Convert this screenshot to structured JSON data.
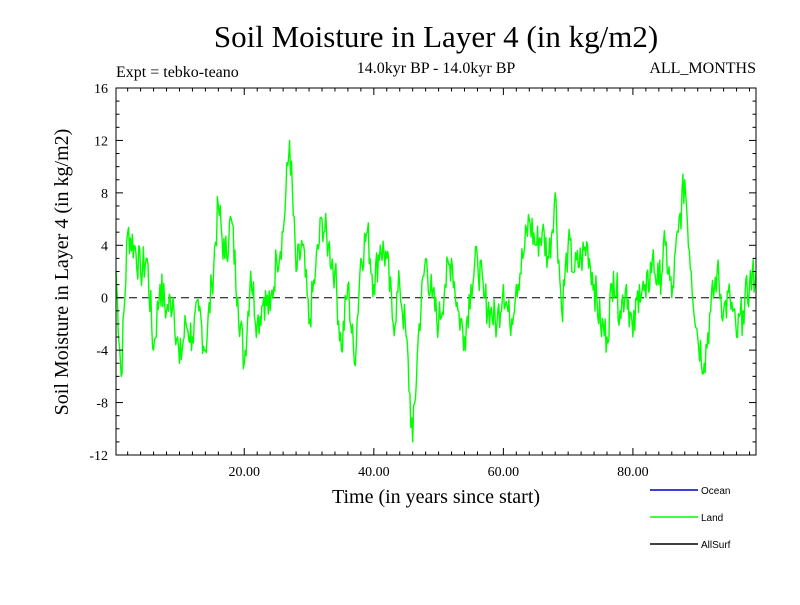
{
  "chart_data": {
    "type": "line",
    "title": "Soil Moisture in Layer 4 (in kg/m2)",
    "subtitle_left": "Expt = tebko-teano",
    "subtitle_center": "14.0kyr BP - 14.0kyr BP",
    "subtitle_right": "ALL_MONTHS",
    "xlabel": "Time (in years since start)",
    "ylabel": "Soil Moisture in Layer 4 (in kg/m2)",
    "xlim": [
      0.2,
      99.0
    ],
    "ylim": [
      -12,
      16
    ],
    "x_ticks": [
      20,
      40,
      60,
      80
    ],
    "x_tick_labels": [
      "20.00",
      "40.00",
      "60.00",
      "80.00"
    ],
    "y_ticks": [
      -12,
      -8,
      -4,
      0,
      4,
      8,
      12,
      16
    ],
    "y_tick_labels": [
      "-12",
      "-8",
      "-4",
      "0",
      "4",
      "8",
      "12",
      "16"
    ],
    "zero_line": true,
    "legend": [
      {
        "name": "Ocean",
        "color": "#0000cc"
      },
      {
        "name": "Land",
        "color": "#00ff00"
      },
      {
        "name": "AllSurf",
        "color": "#000000"
      }
    ],
    "series": [
      {
        "name": "Land",
        "color": "#00ff00",
        "x": [
          0.2,
          1,
          2,
          3,
          4,
          5,
          6,
          7,
          8,
          9,
          10,
          11,
          12,
          13,
          14,
          15,
          16,
          17,
          18,
          19,
          20,
          21,
          22,
          23,
          24,
          25,
          26,
          27,
          28,
          29,
          30,
          31,
          32,
          33,
          34,
          35,
          36,
          37,
          38,
          39,
          40,
          41,
          42,
          43,
          44,
          45,
          46,
          47,
          48,
          49,
          50,
          51,
          52,
          53,
          54,
          55,
          56,
          57,
          58,
          59,
          60,
          61,
          62,
          63,
          64,
          65,
          66,
          67,
          68,
          69,
          70,
          71,
          72,
          73,
          74,
          75,
          76,
          77,
          78,
          79,
          80,
          81,
          82,
          83,
          84,
          85,
          86,
          87,
          88,
          89,
          90,
          91,
          92,
          93,
          94,
          95,
          96,
          97,
          98,
          99
        ],
        "values": [
          2,
          -6,
          5,
          4,
          2,
          3,
          -4,
          1,
          -1,
          0,
          -5,
          -2,
          -3,
          -1,
          -4,
          1,
          7,
          3,
          6,
          0,
          -5,
          2,
          -2,
          0,
          -1,
          3,
          5,
          12,
          2,
          4,
          -2,
          2,
          6,
          4,
          2,
          -4,
          1,
          -5,
          3,
          5,
          1,
          4,
          3,
          -2,
          1,
          -3,
          -11,
          -2,
          3,
          0,
          -2,
          1,
          3,
          -1,
          -3,
          1,
          3,
          0,
          -1,
          -2,
          1,
          -2,
          1,
          3,
          6,
          4,
          5,
          3,
          8,
          -1,
          4,
          2,
          3,
          4,
          1,
          -2,
          -3,
          2,
          -1,
          1,
          -3,
          1,
          0,
          3,
          1,
          4,
          0,
          5,
          9,
          2,
          -3,
          -5,
          -1,
          2,
          -1,
          0,
          -3,
          -1,
          1,
          2
        ]
      }
    ]
  }
}
